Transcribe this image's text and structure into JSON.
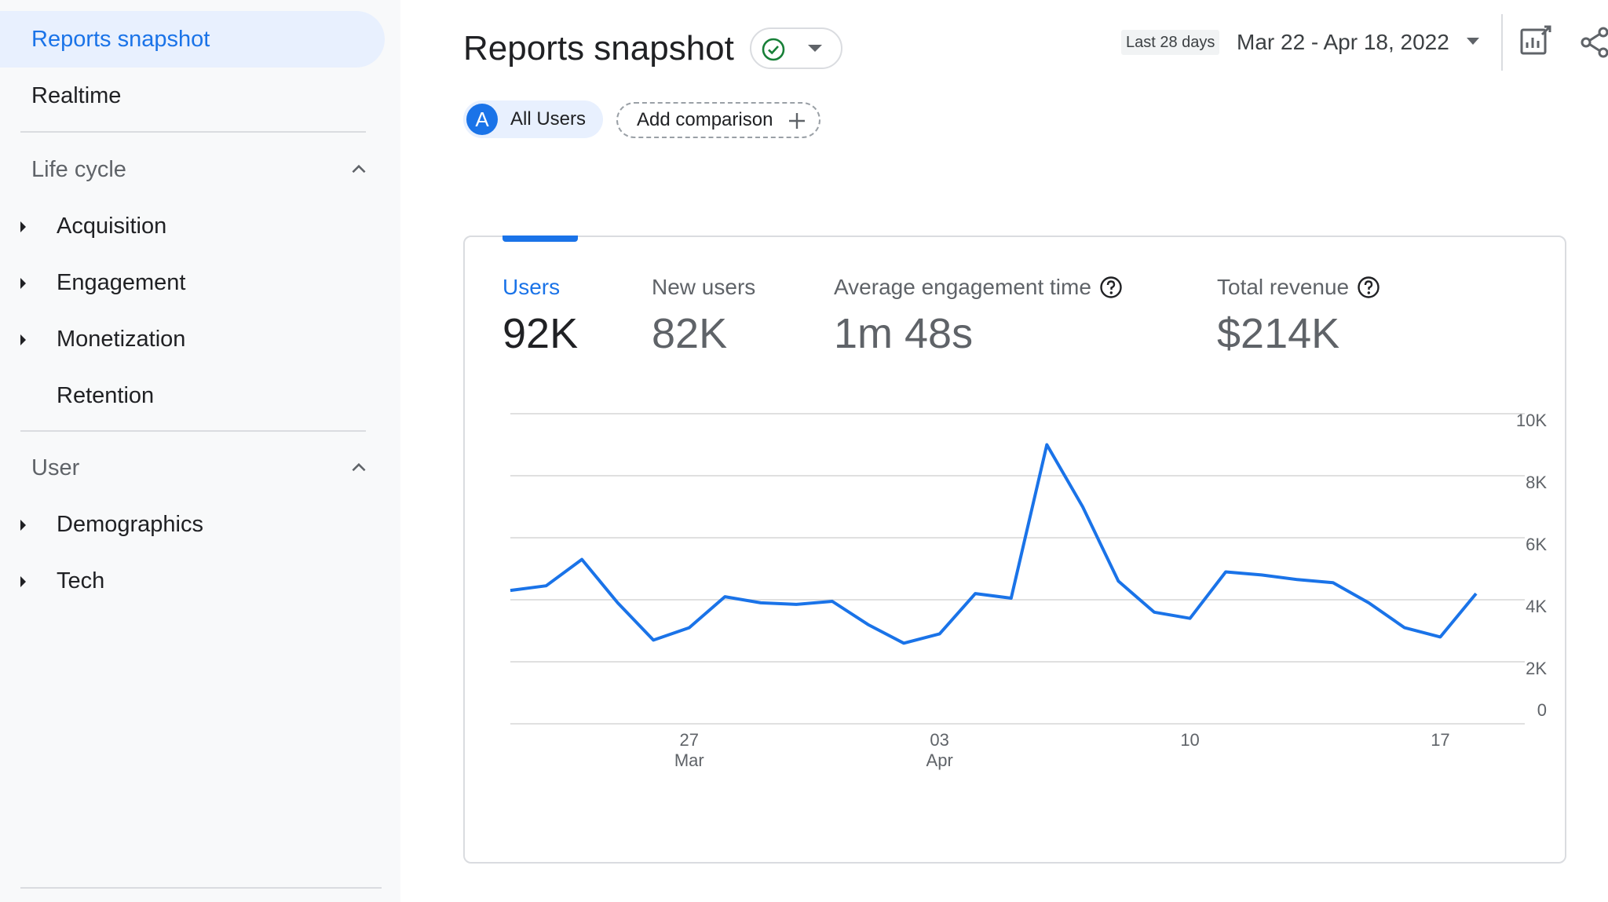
{
  "sidebar": {
    "active_item": "Reports snapshot",
    "realtime": "Realtime",
    "sections": [
      {
        "label": "Life cycle",
        "items": [
          "Acquisition",
          "Engagement",
          "Monetization",
          "Retention"
        ]
      },
      {
        "label": "User",
        "items": [
          "Demographics",
          "Tech"
        ]
      }
    ]
  },
  "header": {
    "title": "Reports snapshot",
    "date_label": "Last 28 days",
    "date_range": "Mar 22 - Apr 18, 2022"
  },
  "chips": {
    "avatar_letter": "A",
    "all_users": "All Users",
    "add_comparison": "Add comparison"
  },
  "metrics": [
    {
      "label": "Users",
      "value": "92K"
    },
    {
      "label": "New users",
      "value": "82K"
    },
    {
      "label": "Average engagement time",
      "value": "1m 48s"
    },
    {
      "label": "Total revenue",
      "value": "$214K"
    }
  ],
  "colors": {
    "accent": "#1a73e8",
    "success": "#188038"
  },
  "chart_data": {
    "type": "line",
    "series": [
      {
        "name": "Users",
        "values": [
          4300,
          4450,
          5300,
          3900,
          2700,
          3100,
          4100,
          3900,
          3850,
          3950,
          3200,
          2600,
          2900,
          4200,
          4050,
          9000,
          7000,
          4600,
          3600,
          3400,
          4900,
          4800,
          4650,
          4550,
          3900,
          3100,
          2800,
          4200
        ]
      }
    ],
    "x_tick_labels": [
      {
        "index": 5,
        "line1": "27",
        "line2": "Mar"
      },
      {
        "index": 12,
        "line1": "03",
        "line2": "Apr"
      },
      {
        "index": 19,
        "line1": "10",
        "line2": ""
      },
      {
        "index": 26,
        "line1": "17",
        "line2": ""
      }
    ],
    "y_ticks": [
      "0",
      "2K",
      "4K",
      "6K",
      "8K",
      "10K"
    ],
    "ylim": [
      0,
      10000
    ]
  }
}
